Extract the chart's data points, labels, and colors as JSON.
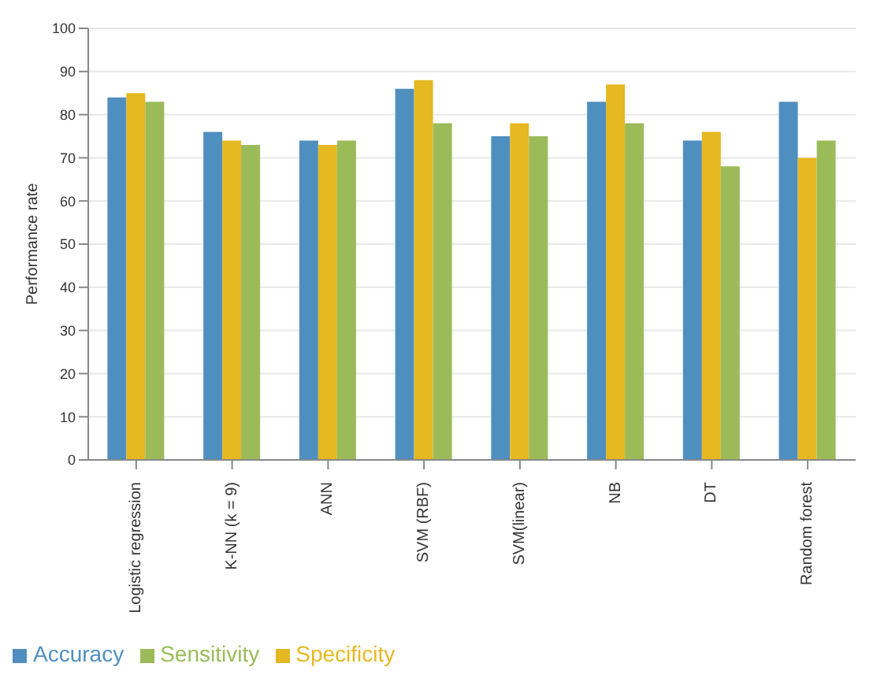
{
  "chart_data": {
    "type": "bar",
    "ylabel": "Performance rate",
    "categories": [
      "Logistic regression",
      "K-NN (k = 9)",
      "ANN",
      "SVM (RBF)",
      "SVM(linear)",
      "NB",
      "DT",
      "Random forest"
    ],
    "series": [
      {
        "name": "Accuracy",
        "color": "#4f8fc0",
        "values": [
          84,
          76,
          74,
          86,
          75,
          83,
          74,
          83
        ]
      },
      {
        "name": "Specificity",
        "color": "#e6b821",
        "values": [
          85,
          74,
          73,
          88,
          78,
          87,
          76,
          70
        ]
      },
      {
        "name": "Sensitivity",
        "color": "#9bbb59",
        "values": [
          83,
          73,
          74,
          78,
          75,
          78,
          68,
          74
        ]
      }
    ],
    "ylim": [
      0,
      100
    ],
    "yticks": [
      0,
      10,
      20,
      30,
      40,
      50,
      60,
      70,
      80,
      90,
      100
    ],
    "grid": "y",
    "legend": "bottom left"
  }
}
